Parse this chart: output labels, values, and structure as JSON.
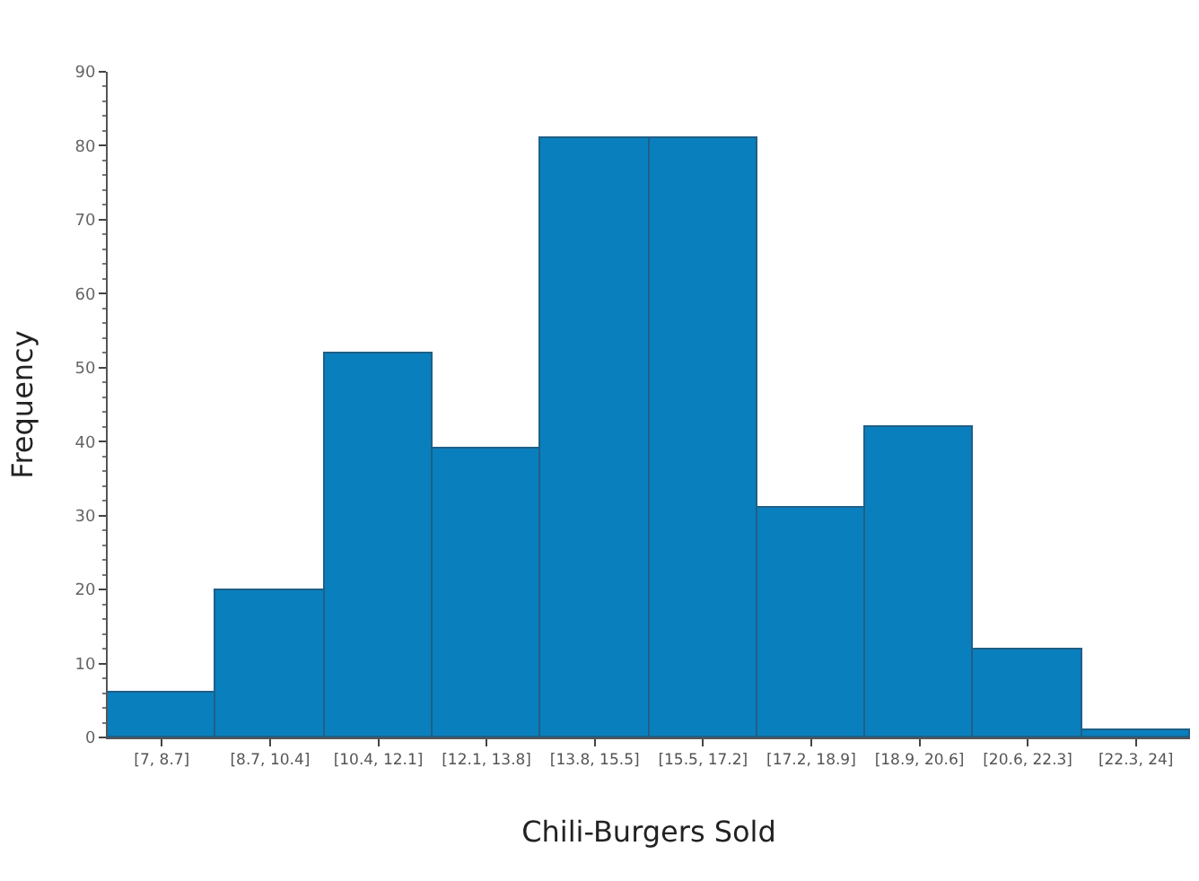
{
  "chart_data": {
    "type": "bar",
    "xlabel": "Chili-Burgers Sold",
    "ylabel": "Frequency",
    "categories": [
      "[7, 8.7]",
      "[8.7, 10.4]",
      "[10.4, 12.1]",
      "[12.1, 13.8]",
      "[13.8, 15.5]",
      "[15.5, 17.2]",
      "[17.2, 18.9]",
      "[18.9, 20.6]",
      "[20.6, 22.3]",
      "[22.3, 24]"
    ],
    "values": [
      6,
      20,
      52,
      39,
      81,
      81,
      31,
      42,
      12,
      1
    ],
    "color": "#0a7fbd",
    "ylim": [
      0,
      90
    ],
    "yticks": [
      0,
      10,
      20,
      30,
      40,
      50,
      60,
      70,
      80,
      90
    ],
    "grid": false,
    "legend": false
  }
}
